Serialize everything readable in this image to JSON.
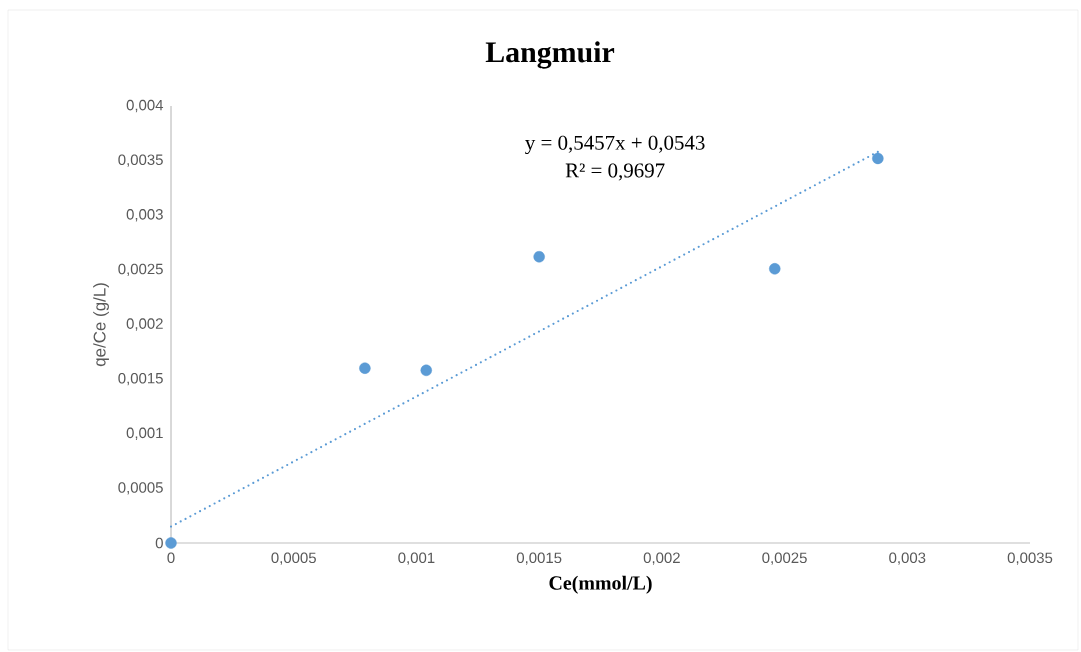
{
  "chart_data": {
    "type": "scatter",
    "title": "Langmuir",
    "xlabel": "Ce(mmol/L)",
    "ylabel": "qe/Ce (g/L)",
    "annotations": [
      "y = 0,5457x + 0,0543",
      "R² = 0,9697"
    ],
    "xlim": [
      0,
      0.0035
    ],
    "ylim": [
      0,
      0.004
    ],
    "xticks": [
      0,
      {
        "value": 0.0005,
        "label": "0,0005"
      },
      {
        "value": 0.001,
        "label": "0,001"
      },
      {
        "value": 0.0015,
        "label": "0,0015"
      },
      {
        "value": 0.002,
        "label": "0,002"
      },
      {
        "value": 0.0025,
        "label": "0,0025"
      },
      {
        "value": 0.003,
        "label": "0,003"
      },
      {
        "value": 0.0035,
        "label": "0,0035"
      }
    ],
    "yticks": [
      0,
      {
        "value": 0.0005,
        "label": "0,0005"
      },
      {
        "value": 0.001,
        "label": "0,001"
      },
      {
        "value": 0.0015,
        "label": "0,0015"
      },
      {
        "value": 0.002,
        "label": "0,002"
      },
      {
        "value": 0.0025,
        "label": "0,0025"
      },
      {
        "value": 0.003,
        "label": "0,003"
      },
      {
        "value": 0.0035,
        "label": "0,0035"
      },
      {
        "value": 0.004,
        "label": "0,004"
      }
    ],
    "marker": "circle",
    "series": [
      {
        "color": "#5b9bd5",
        "x": [
          0,
          0.00079,
          0.00104,
          0.0015,
          0.00246,
          0.00288
        ],
        "values": [
          0,
          0.0016,
          0.00158,
          0.00262,
          0.00251,
          0.00352
        ]
      },
      {
        "type": "line",
        "color": "#5b9bd5",
        "line_style": "dotted",
        "marker": "none",
        "x": [
          0,
          0.00288
        ],
        "values": [
          0.00015,
          0.00358
        ]
      }
    ]
  }
}
